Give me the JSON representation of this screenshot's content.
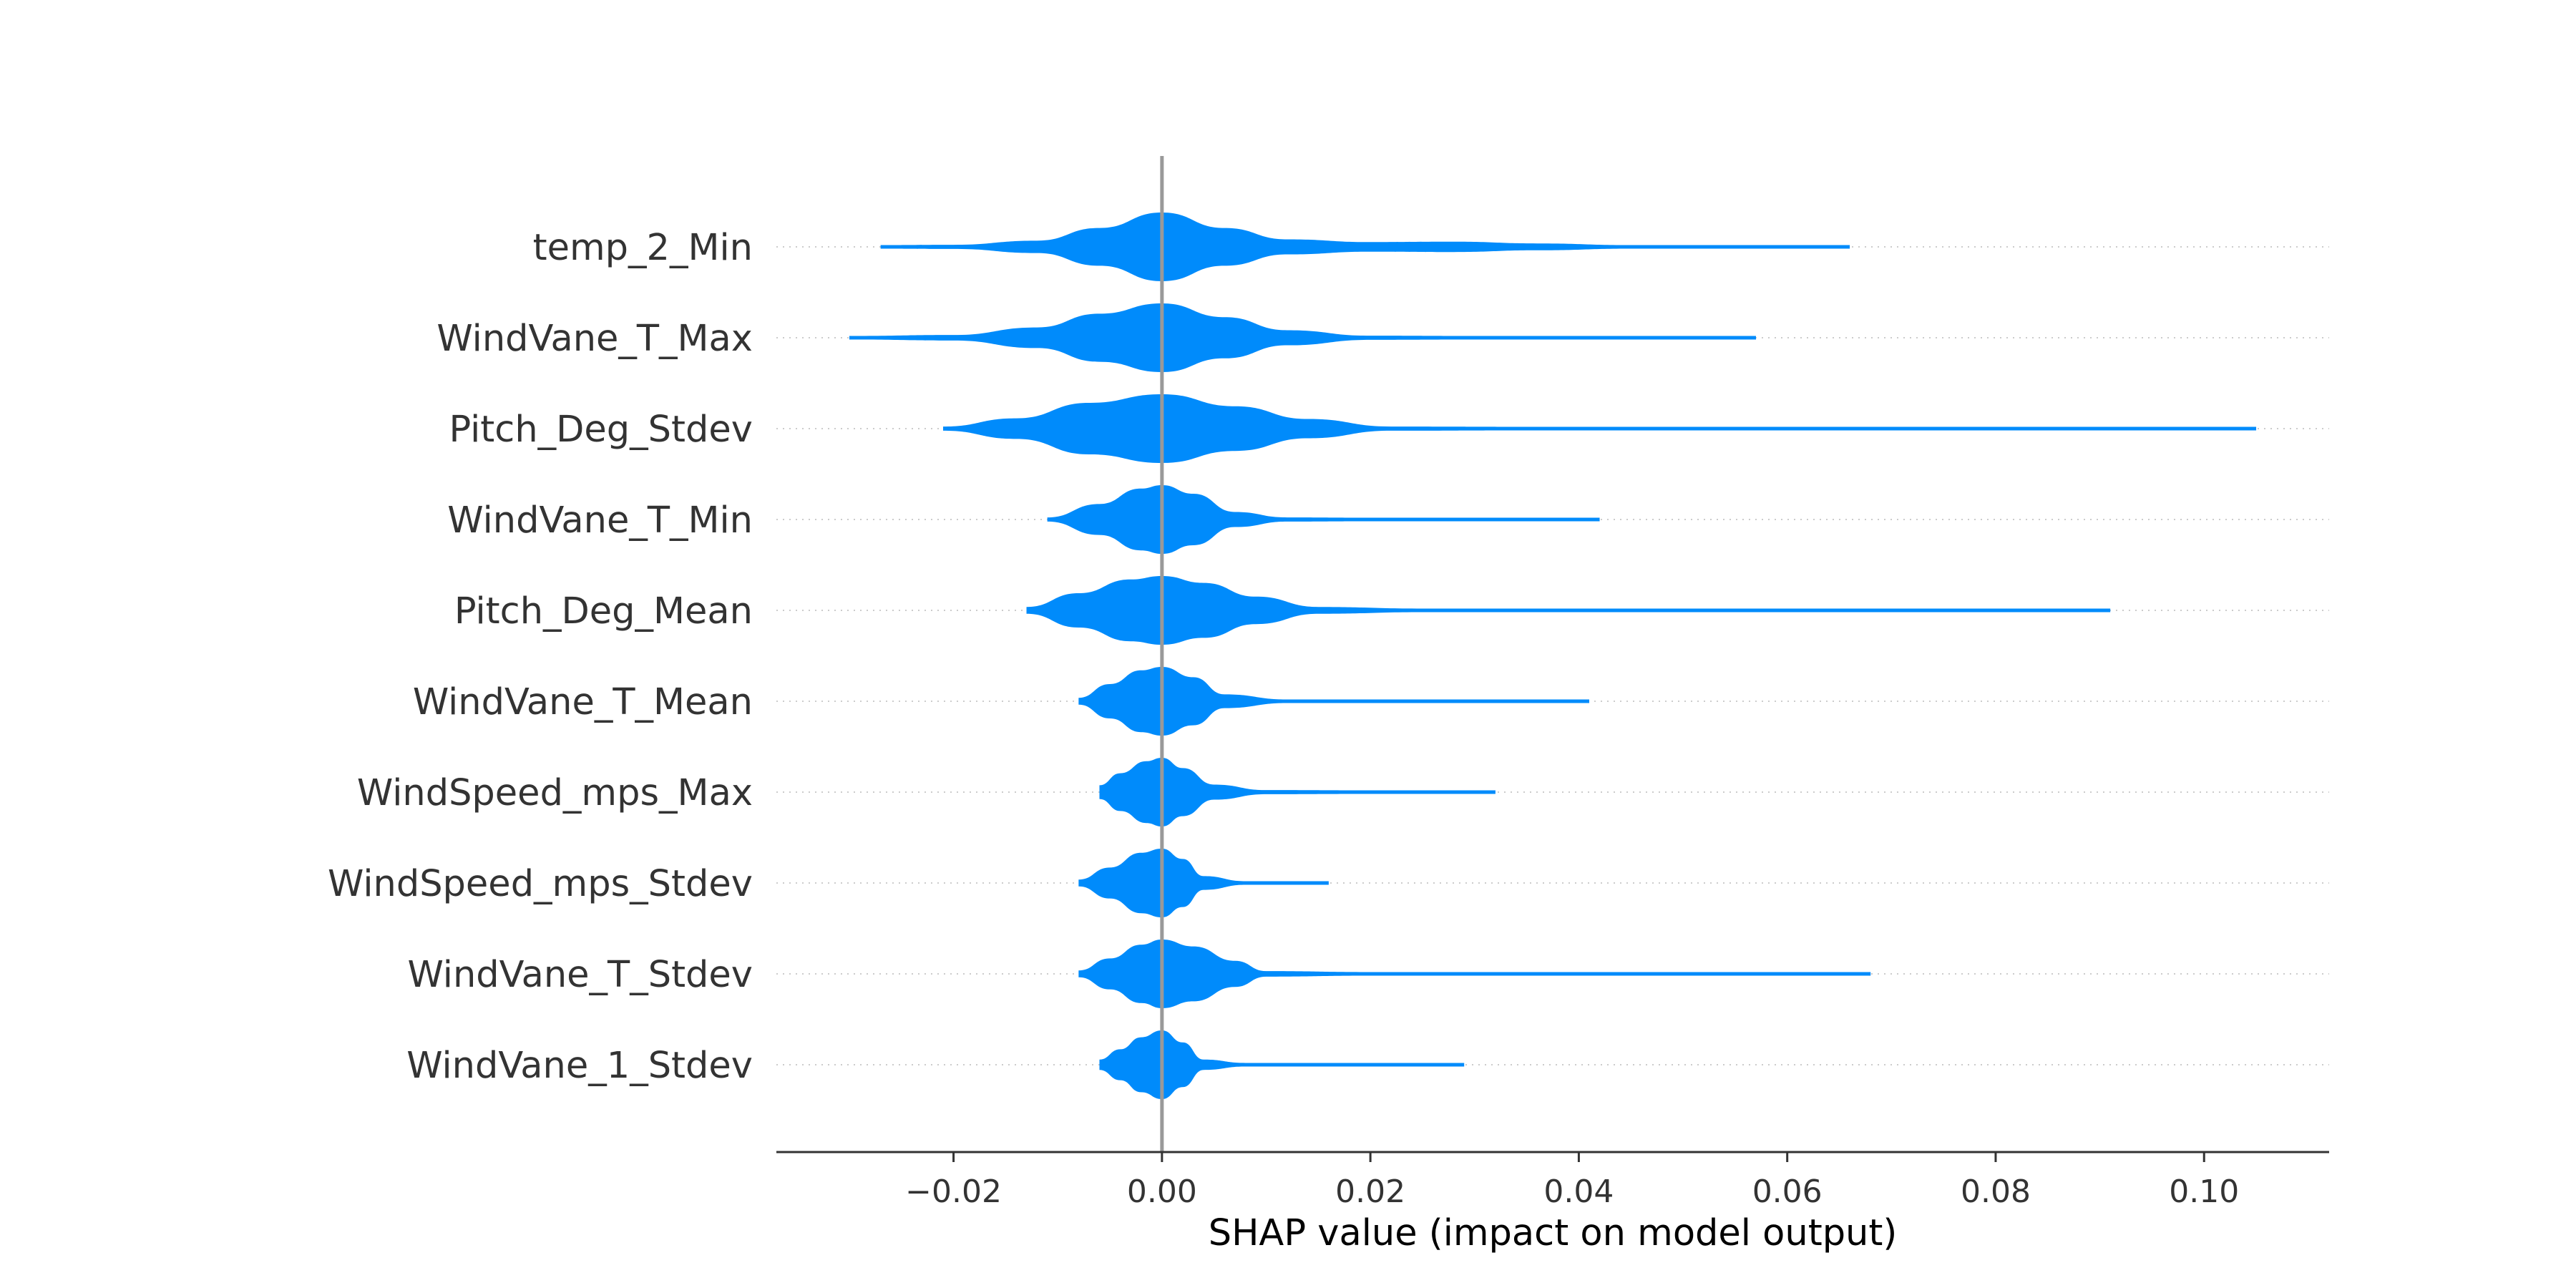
{
  "chart_data": {
    "type": "violin",
    "xlabel": "SHAP value (impact on model output)",
    "xlim": [
      -0.037,
      0.112
    ],
    "x_ticks": [
      {
        "value": -0.02,
        "label": "−0.02"
      },
      {
        "value": 0.0,
        "label": "0.00"
      },
      {
        "value": 0.02,
        "label": "0.02"
      },
      {
        "value": 0.04,
        "label": "0.04"
      },
      {
        "value": 0.06,
        "label": "0.06"
      },
      {
        "value": 0.08,
        "label": "0.08"
      },
      {
        "value": 0.1,
        "label": "0.10"
      }
    ],
    "zero_line": 0.0,
    "violin_color": "#008bfb",
    "axis_color": "#333333",
    "features": [
      {
        "name": "temp_2_Min",
        "min": -0.027,
        "max": 0.066,
        "width": 0.9,
        "profile": [
          [
            -0.027,
            0.04
          ],
          [
            -0.02,
            0.06
          ],
          [
            -0.012,
            0.18
          ],
          [
            -0.006,
            0.55
          ],
          [
            0.0,
            1.0
          ],
          [
            0.006,
            0.55
          ],
          [
            0.012,
            0.22
          ],
          [
            0.02,
            0.14
          ],
          [
            0.028,
            0.15
          ],
          [
            0.036,
            0.1
          ],
          [
            0.045,
            0.04
          ],
          [
            0.055,
            0.02
          ],
          [
            0.066,
            0.02
          ]
        ]
      },
      {
        "name": "WindVane_T_Max",
        "min": -0.03,
        "max": 0.057,
        "width": 0.9,
        "profile": [
          [
            -0.03,
            0.03
          ],
          [
            -0.02,
            0.08
          ],
          [
            -0.012,
            0.3
          ],
          [
            -0.006,
            0.7
          ],
          [
            0.0,
            1.0
          ],
          [
            0.006,
            0.6
          ],
          [
            0.012,
            0.22
          ],
          [
            0.02,
            0.06
          ],
          [
            0.03,
            0.04
          ],
          [
            0.045,
            0.03
          ],
          [
            0.057,
            0.03
          ]
        ]
      },
      {
        "name": "Pitch_Deg_Stdev",
        "min": -0.021,
        "max": 0.105,
        "width": 0.9,
        "profile": [
          [
            -0.021,
            0.06
          ],
          [
            -0.014,
            0.3
          ],
          [
            -0.007,
            0.75
          ],
          [
            0.0,
            1.0
          ],
          [
            0.007,
            0.65
          ],
          [
            0.014,
            0.28
          ],
          [
            0.022,
            0.06
          ],
          [
            0.035,
            0.03
          ],
          [
            0.06,
            0.02
          ],
          [
            0.085,
            0.02
          ],
          [
            0.105,
            0.02
          ]
        ]
      },
      {
        "name": "WindVane_T_Min",
        "min": -0.011,
        "max": 0.042,
        "width": 0.9,
        "profile": [
          [
            -0.011,
            0.06
          ],
          [
            -0.006,
            0.45
          ],
          [
            -0.002,
            0.9
          ],
          [
            0.0,
            1.0
          ],
          [
            0.003,
            0.75
          ],
          [
            0.007,
            0.22
          ],
          [
            0.012,
            0.06
          ],
          [
            0.02,
            0.04
          ],
          [
            0.03,
            0.02
          ],
          [
            0.042,
            0.02
          ]
        ]
      },
      {
        "name": "Pitch_Deg_Mean",
        "min": -0.013,
        "max": 0.091,
        "width": 0.9,
        "profile": [
          [
            -0.013,
            0.1
          ],
          [
            -0.008,
            0.5
          ],
          [
            -0.003,
            0.9
          ],
          [
            0.0,
            1.0
          ],
          [
            0.004,
            0.8
          ],
          [
            0.009,
            0.4
          ],
          [
            0.015,
            0.1
          ],
          [
            0.025,
            0.03
          ],
          [
            0.05,
            0.02
          ],
          [
            0.075,
            0.02
          ],
          [
            0.091,
            0.02
          ]
        ]
      },
      {
        "name": "WindVane_T_Mean",
        "min": -0.008,
        "max": 0.041,
        "width": 0.9,
        "profile": [
          [
            -0.008,
            0.1
          ],
          [
            -0.005,
            0.5
          ],
          [
            -0.002,
            0.9
          ],
          [
            0.0,
            1.0
          ],
          [
            0.003,
            0.7
          ],
          [
            0.006,
            0.2
          ],
          [
            0.012,
            0.05
          ],
          [
            0.025,
            0.03
          ],
          [
            0.041,
            0.02
          ]
        ]
      },
      {
        "name": "WindSpeed_mps_Max",
        "min": -0.006,
        "max": 0.032,
        "width": 0.9,
        "profile": [
          [
            -0.006,
            0.2
          ],
          [
            -0.004,
            0.55
          ],
          [
            -0.0015,
            0.9
          ],
          [
            0.0,
            1.0
          ],
          [
            0.002,
            0.7
          ],
          [
            0.005,
            0.22
          ],
          [
            0.01,
            0.06
          ],
          [
            0.02,
            0.04
          ],
          [
            0.032,
            0.03
          ]
        ]
      },
      {
        "name": "WindSpeed_mps_Stdev",
        "min": -0.008,
        "max": 0.016,
        "width": 0.9,
        "profile": [
          [
            -0.008,
            0.1
          ],
          [
            -0.005,
            0.45
          ],
          [
            -0.002,
            0.88
          ],
          [
            0.0,
            1.0
          ],
          [
            0.002,
            0.7
          ],
          [
            0.004,
            0.2
          ],
          [
            0.008,
            0.05
          ],
          [
            0.016,
            0.04
          ]
        ]
      },
      {
        "name": "WindVane_T_Stdev",
        "min": -0.008,
        "max": 0.068,
        "width": 0.9,
        "profile": [
          [
            -0.008,
            0.1
          ],
          [
            -0.005,
            0.45
          ],
          [
            -0.002,
            0.85
          ],
          [
            0.0,
            1.0
          ],
          [
            0.003,
            0.8
          ],
          [
            0.007,
            0.38
          ],
          [
            0.01,
            0.08
          ],
          [
            0.02,
            0.02
          ],
          [
            0.04,
            0.01
          ],
          [
            0.068,
            0.02
          ]
        ]
      },
      {
        "name": "WindVane_1_Stdev",
        "min": -0.006,
        "max": 0.029,
        "width": 0.9,
        "profile": [
          [
            -0.006,
            0.15
          ],
          [
            -0.004,
            0.45
          ],
          [
            -0.002,
            0.8
          ],
          [
            0.0,
            1.0
          ],
          [
            0.002,
            0.65
          ],
          [
            0.004,
            0.15
          ],
          [
            0.008,
            0.03
          ],
          [
            0.018,
            0.02
          ],
          [
            0.029,
            0.02
          ]
        ]
      }
    ]
  }
}
